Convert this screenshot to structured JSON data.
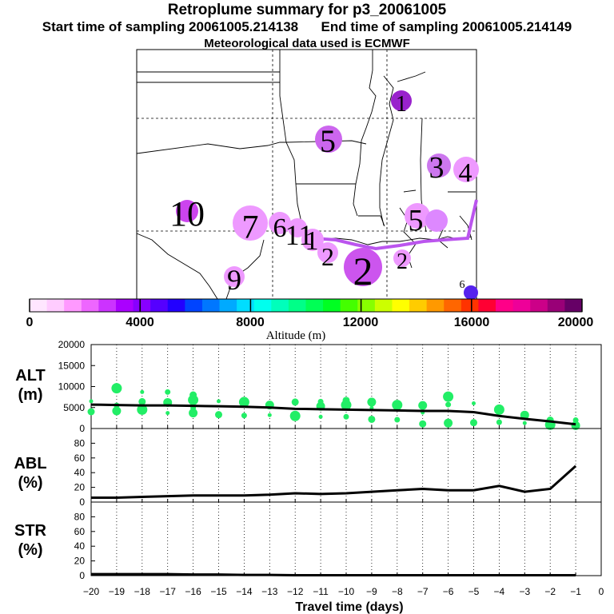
{
  "header": {
    "title": "Retroplume summary for p3_20061005",
    "start_label": "Start time of sampling 20061005.214138",
    "end_label": "End time of sampling 20061005.214149",
    "met_label": "Meteorological data used is ECMWF"
  },
  "colorbar": {
    "label": "Altitude (m)",
    "ticks": [
      "0",
      "4000",
      "8000",
      "12000",
      "16000",
      "20000"
    ],
    "colors": [
      "#ffe6ff",
      "#ffccff",
      "#ff99ff",
      "#ee66ff",
      "#cc33ff",
      "#aa00ff",
      "#8800ff",
      "#5500ff",
      "#2200ff",
      "#0044ff",
      "#0077ff",
      "#00aaff",
      "#00ddff",
      "#00ffee",
      "#00ffbb",
      "#00ff88",
      "#00ff55",
      "#00ff22",
      "#44ff00",
      "#88ff00",
      "#ccff00",
      "#ffff00",
      "#ffcc00",
      "#ff9900",
      "#ff6600",
      "#ff3300",
      "#ff0033",
      "#ff0088",
      "#ee0099",
      "#cc0088",
      "#990077",
      "#660066"
    ]
  },
  "map": {
    "labels": [
      {
        "text": "1",
        "color": "#9922cc"
      },
      {
        "text": "5",
        "color": "#cc66ee"
      },
      {
        "text": "3",
        "color": "#cc77ee"
      },
      {
        "text": "4",
        "color": "#ee99ff"
      },
      {
        "text": "10",
        "color": "#cc44ee"
      },
      {
        "text": "7",
        "color": "#ee99ff"
      },
      {
        "text": "6",
        "color": "#ee99ff"
      },
      {
        "text": "11",
        "color": "#ee99ff"
      },
      {
        "text": "1",
        "color": "#ee99ff"
      },
      {
        "text": "2",
        "color": "#ee99ff"
      },
      {
        "text": "2",
        "color": "#cc55ee"
      },
      {
        "text": "2",
        "color": "#ee99ff"
      },
      {
        "text": "5",
        "color": "#ee99ff"
      },
      {
        "text": "9",
        "color": "#ee99ff"
      },
      {
        "text": "6",
        "color": "#5522ee"
      }
    ]
  },
  "chart_data": [
    {
      "type": "line",
      "panel": "ALT",
      "ylabel": "ALT\n(m)",
      "ylim": [
        0,
        20000
      ],
      "yticks": [
        "20000",
        "15000",
        "10000",
        "5000",
        "0"
      ],
      "x": [
        -20,
        -19,
        -18,
        -17,
        -16,
        -15,
        -14,
        -13,
        -12,
        -11,
        -10,
        -9,
        -8,
        -7,
        -6,
        -5,
        -4,
        -3,
        -2,
        -1
      ],
      "series": [
        {
          "name": "median altitude",
          "values": [
            5700,
            5600,
            5500,
            5500,
            5400,
            5300,
            5200,
            5000,
            4700,
            4600,
            4500,
            4400,
            4300,
            4200,
            4200,
            3900,
            3000,
            2300,
            1700,
            1000
          ]
        },
        {
          "name": "cluster altitudes",
          "color": "#22ee66",
          "points": [
            [
              -20,
              6500
            ],
            [
              -20,
              4000
            ],
            [
              -19,
              9600
            ],
            [
              -19,
              5500
            ],
            [
              -19,
              4200
            ],
            [
              -18,
              8700
            ],
            [
              -18,
              6400
            ],
            [
              -18,
              4500
            ],
            [
              -17,
              8700
            ],
            [
              -17,
              6200
            ],
            [
              -17,
              3700
            ],
            [
              -16,
              8000
            ],
            [
              -16,
              6800
            ],
            [
              -16,
              4900
            ],
            [
              -16,
              3700
            ],
            [
              -15,
              6500
            ],
            [
              -15,
              3300
            ],
            [
              -14,
              6300
            ],
            [
              -14,
              3100
            ],
            [
              -13,
              5600
            ],
            [
              -13,
              3200
            ],
            [
              -12,
              6300
            ],
            [
              -12,
              3000
            ],
            [
              -11,
              6400
            ],
            [
              -11,
              5300
            ],
            [
              -11,
              2800
            ],
            [
              -10,
              6700
            ],
            [
              -10,
              5600
            ],
            [
              -10,
              2800
            ],
            [
              -9,
              6300
            ],
            [
              -9,
              4900
            ],
            [
              -9,
              2200
            ],
            [
              -8,
              5600
            ],
            [
              -8,
              2100
            ],
            [
              -7,
              5500
            ],
            [
              -7,
              3800
            ],
            [
              -7,
              1100
            ],
            [
              -6,
              7600
            ],
            [
              -6,
              5700
            ],
            [
              -6,
              1300
            ],
            [
              -5,
              6000
            ],
            [
              -5,
              1400
            ],
            [
              -4,
              4500
            ],
            [
              -4,
              1500
            ],
            [
              -3,
              3200
            ],
            [
              -3,
              1300
            ],
            [
              -2,
              2000
            ],
            [
              -2,
              900
            ],
            [
              -1,
              2000
            ],
            [
              -1,
              700
            ]
          ]
        }
      ]
    },
    {
      "type": "line",
      "panel": "ABL",
      "ylabel": "ABL\n(%)",
      "ylim": [
        0,
        100
      ],
      "yticks": [
        "80",
        "60",
        "40",
        "20",
        "0"
      ],
      "x": [
        -20,
        -19,
        -18,
        -17,
        -16,
        -15,
        -14,
        -13,
        -12,
        -11,
        -10,
        -9,
        -8,
        -7,
        -6,
        -5,
        -4,
        -3,
        -2,
        -1
      ],
      "values": [
        6,
        6,
        7,
        8,
        9,
        9,
        9,
        10,
        12,
        11,
        12,
        14,
        16,
        18,
        16,
        16,
        22,
        14,
        18,
        49
      ]
    },
    {
      "type": "line",
      "panel": "STR",
      "ylabel": "STR\n(%)",
      "ylim": [
        0,
        100
      ],
      "yticks": [
        "80",
        "60",
        "40",
        "20",
        "0"
      ],
      "x": [
        -20,
        -19,
        -18,
        -17,
        -16,
        -15,
        -14,
        -13,
        -12,
        -11,
        -10,
        -9,
        -8,
        -7,
        -6,
        -5,
        -4,
        -3,
        -2,
        -1
      ],
      "values": [
        2,
        2,
        2,
        2,
        1.5,
        1.5,
        1,
        1,
        0.5,
        0.5,
        0.5,
        0.5,
        0.5,
        0.5,
        0.5,
        0.5,
        0.5,
        0.5,
        0.5,
        0.5
      ]
    }
  ],
  "xaxis": {
    "ticks": [
      "−20",
      "−19",
      "−18",
      "−17",
      "−16",
      "−15",
      "−14",
      "−13",
      "−12",
      "−11",
      "−10",
      "−9",
      "−8",
      "−7",
      "−6",
      "−5",
      "−4",
      "−3",
      "−2",
      "−1",
      "0"
    ],
    "label": "Travel time (days)"
  }
}
